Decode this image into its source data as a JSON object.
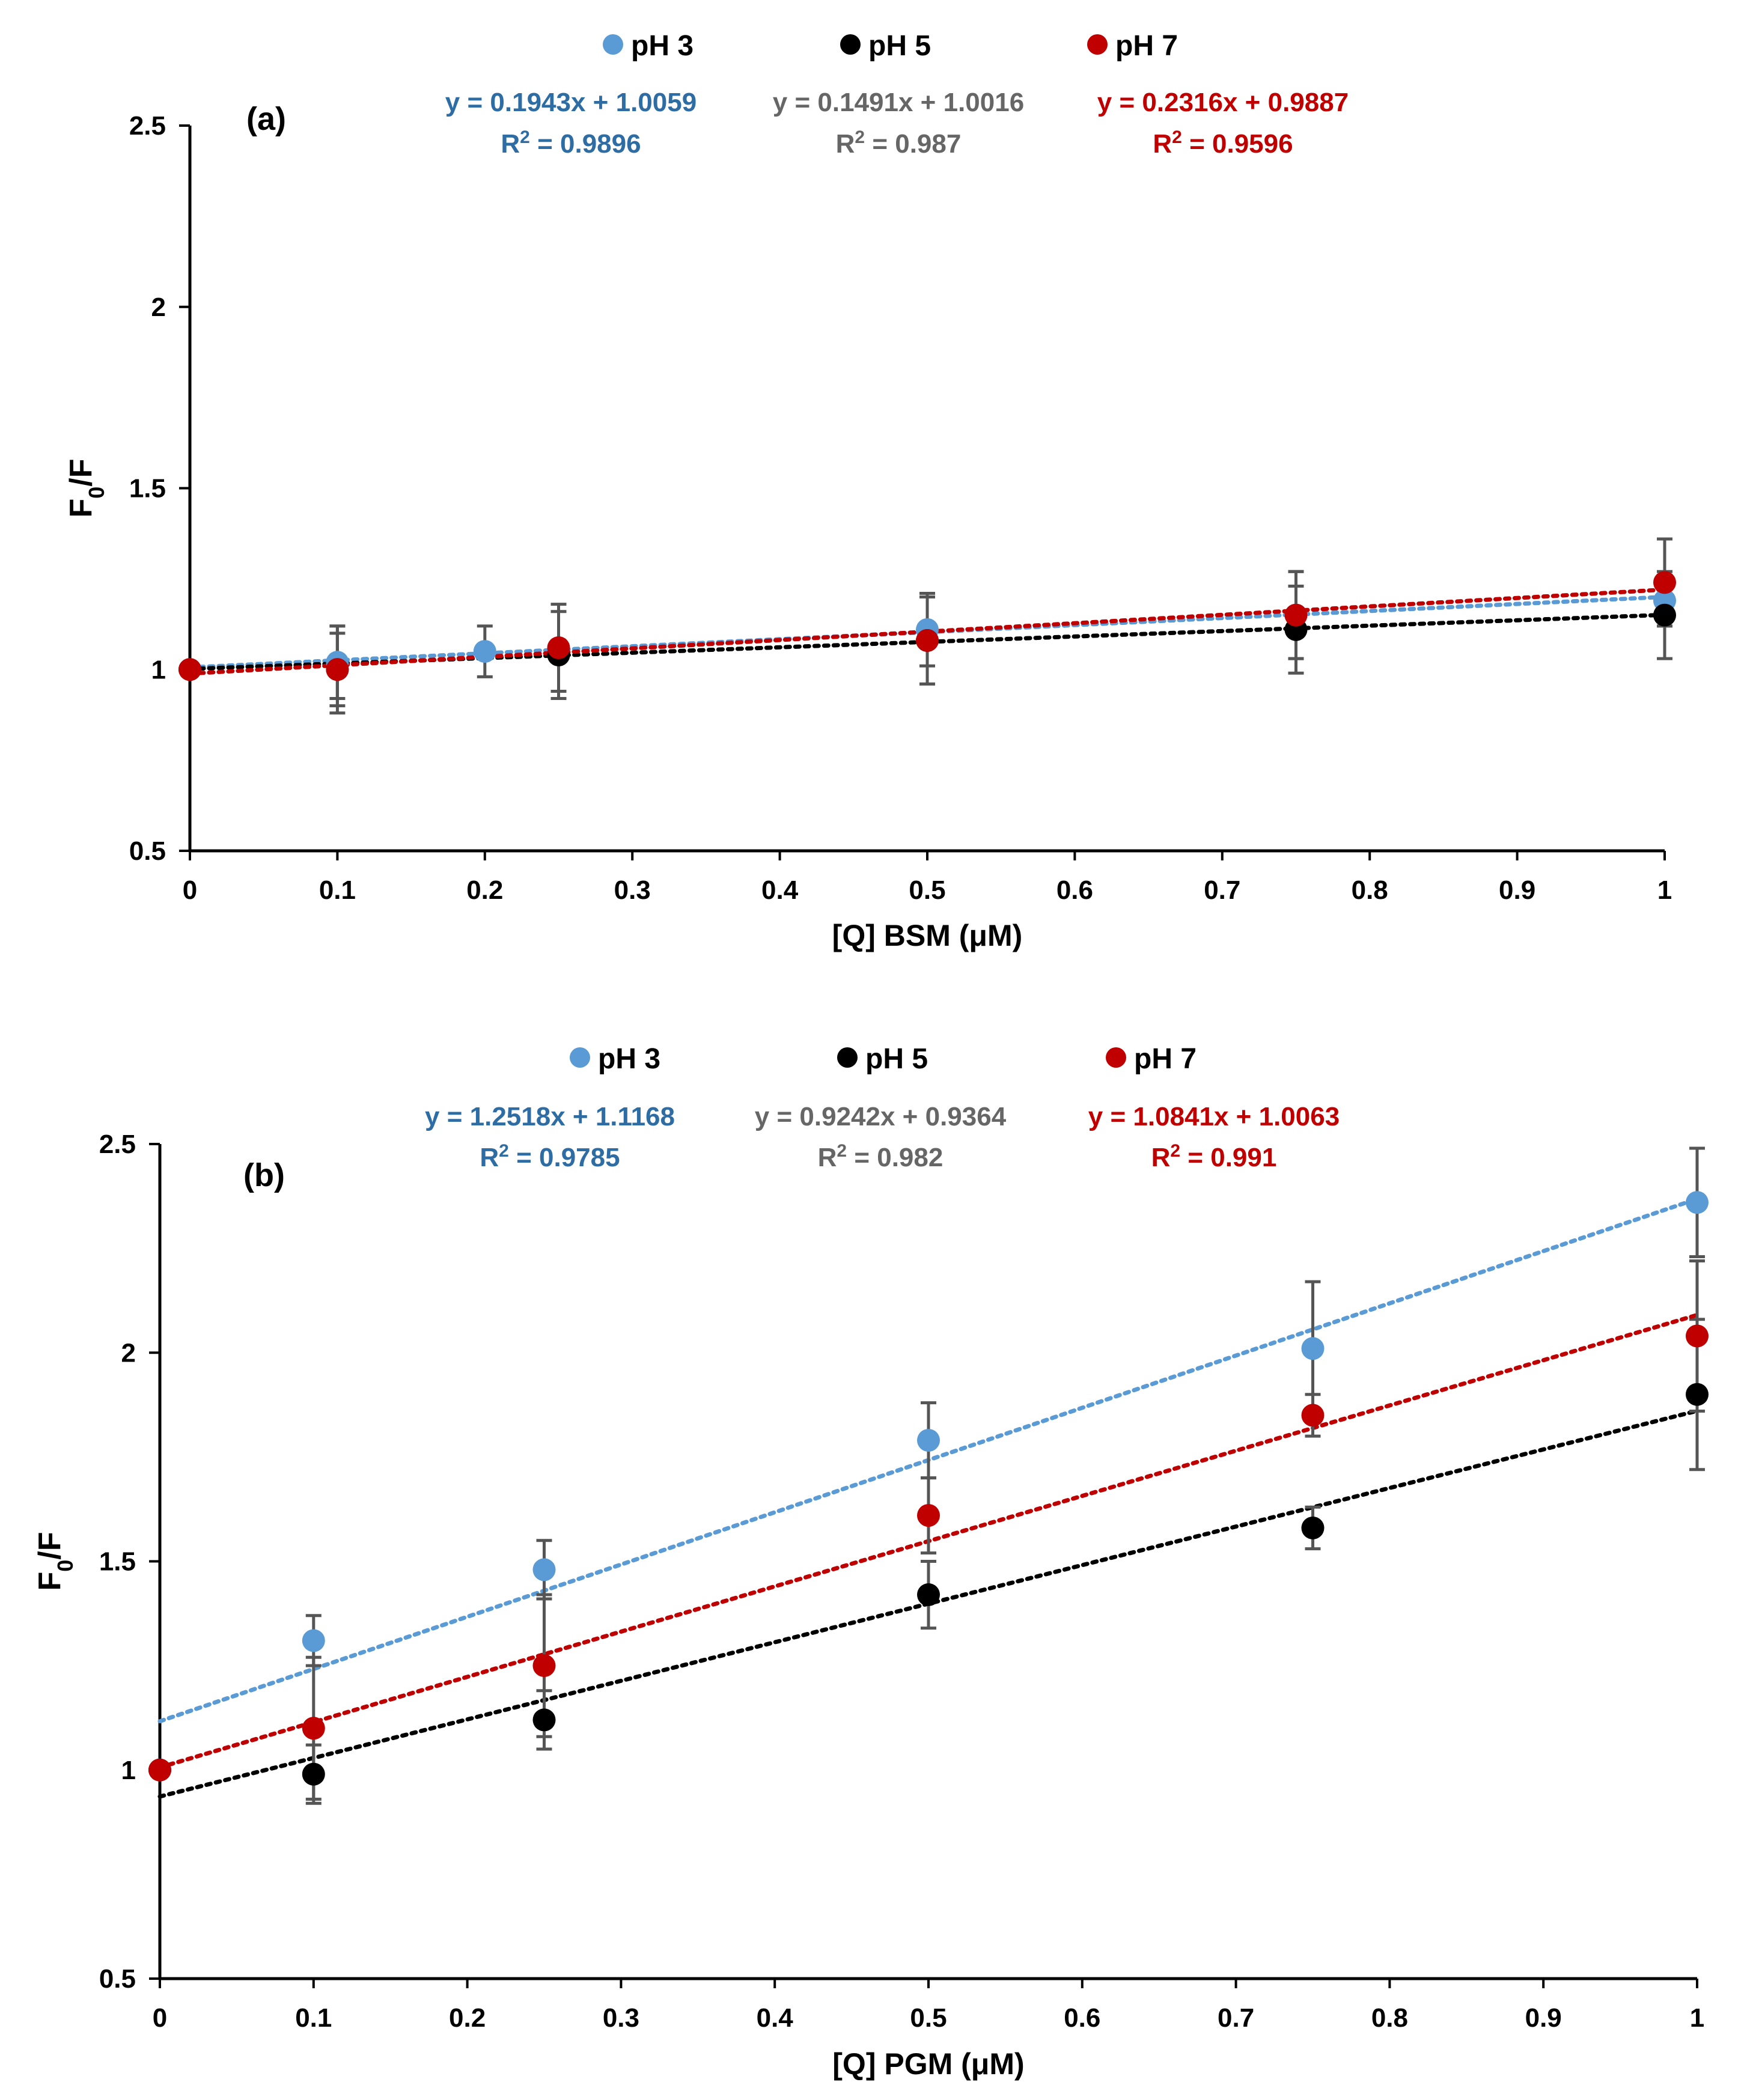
{
  "colors": {
    "ph3": "#5b9bd5",
    "ph3_text": "#2e6da4",
    "ph5": "#000000",
    "ph5_text": "#666666",
    "ph7": "#c00000",
    "axis": "#000000",
    "errorbar": "#555555"
  },
  "chart_data": [
    {
      "type": "scatter",
      "panel_label": "(a)",
      "xlabel": "[Q] BSM (μM)",
      "ylabel_main": "F",
      "ylabel_sub": "0",
      "ylabel_tail": "/F",
      "xlim": [
        0,
        1
      ],
      "ylim": [
        0.5,
        2.5
      ],
      "xticks": [
        0,
        0.1,
        0.2,
        0.3,
        0.4,
        0.5,
        0.6,
        0.7,
        0.8,
        0.9,
        1
      ],
      "xtick_labels": [
        "0",
        "0.1",
        "0.2",
        "0.3",
        "0.4",
        "0.5",
        "0.6",
        "0.7",
        "0.8",
        "0.9",
        "1"
      ],
      "yticks": [
        0.5,
        1,
        1.5,
        2,
        2.5
      ],
      "ytick_labels": [
        "0.5",
        "1",
        "1.5",
        "2",
        "2.5"
      ],
      "series": [
        {
          "name": "pH 3",
          "color_key": "ph3",
          "x": [
            0,
            0.1,
            0.2,
            0.5,
            0.75,
            1
          ],
          "y": [
            1.0,
            1.02,
            1.05,
            1.11,
            1.15,
            1.19
          ],
          "err": [
            0,
            0.1,
            0.07,
            0.1,
            0.12,
            0.07
          ],
          "trend_slope": 0.1943,
          "trend_intercept": 1.0059,
          "equation": "y = 0.1943x + 1.0059",
          "r2_label": "R",
          "r2_sup": "2",
          "r2_value": " = 0.9896"
        },
        {
          "name": "pH 5",
          "color_key": "ph5",
          "x": [
            0,
            0.1,
            0.25,
            0.5,
            0.75,
            1
          ],
          "y": [
            1.0,
            1.0,
            1.04,
            1.08,
            1.11,
            1.15
          ],
          "err": [
            0,
            0.12,
            0.12,
            0.12,
            0.12,
            0.12
          ],
          "trend_slope": 0.1491,
          "trend_intercept": 1.0016,
          "equation": "y = 0.1491x + 1.0016",
          "r2_label": "R",
          "r2_sup": "2",
          "r2_value": " = 0.987"
        },
        {
          "name": "pH 7",
          "color_key": "ph7",
          "x": [
            0,
            0.1,
            0.25,
            0.5,
            0.75,
            1
          ],
          "y": [
            1.0,
            1.0,
            1.06,
            1.08,
            1.15,
            1.24
          ],
          "err": [
            0,
            0.1,
            0.12,
            0.12,
            0.12,
            0.12
          ],
          "trend_slope": 0.2316,
          "trend_intercept": 0.9887,
          "equation": "y = 0.2316x + 0.9887",
          "r2_label": "R",
          "r2_sup": "2",
          "r2_value": " = 0.9596"
        }
      ]
    },
    {
      "type": "scatter",
      "panel_label": "(b)",
      "xlabel": "[Q] PGM (μM)",
      "ylabel_main": "F",
      "ylabel_sub": "0",
      "ylabel_tail": "/F",
      "xlim": [
        0,
        1
      ],
      "ylim": [
        0.5,
        2.5
      ],
      "xticks": [
        0,
        0.1,
        0.2,
        0.3,
        0.4,
        0.5,
        0.6,
        0.7,
        0.8,
        0.9,
        1
      ],
      "xtick_labels": [
        "0",
        "0.1",
        "0.2",
        "0.3",
        "0.4",
        "0.5",
        "0.6",
        "0.7",
        "0.8",
        "0.9",
        "1"
      ],
      "yticks": [
        0.5,
        1,
        1.5,
        2,
        2.5
      ],
      "ytick_labels": [
        "0.5",
        "1",
        "1.5",
        "2",
        "2.5"
      ],
      "series": [
        {
          "name": "pH 3",
          "color_key": "ph3",
          "x": [
            0,
            0.1,
            0.25,
            0.5,
            0.75,
            1
          ],
          "y": [
            1.0,
            1.31,
            1.48,
            1.79,
            2.01,
            2.36
          ],
          "err": [
            0,
            0.06,
            0.07,
            0.09,
            0.16,
            0.13
          ],
          "trend_slope": 1.2518,
          "trend_intercept": 1.1168,
          "equation": "y = 1.2518x + 1.1168",
          "r2_label": "R",
          "r2_sup": "2",
          "r2_value": " = 0.9785"
        },
        {
          "name": "pH 5",
          "color_key": "ph5",
          "x": [
            0,
            0.1,
            0.25,
            0.5,
            0.75,
            1
          ],
          "y": [
            1.0,
            0.99,
            1.12,
            1.42,
            1.58,
            1.9
          ],
          "err": [
            0,
            0.07,
            0.07,
            0.08,
            0.05,
            0.18
          ],
          "trend_slope": 0.9242,
          "trend_intercept": 0.9364,
          "equation": "y = 0.9242x + 0.9364",
          "r2_label": "R",
          "r2_sup": "2",
          "r2_value": " = 0.982"
        },
        {
          "name": "pH 7",
          "color_key": "ph7",
          "x": [
            0,
            0.1,
            0.25,
            0.5,
            0.75,
            1
          ],
          "y": [
            1.0,
            1.1,
            1.25,
            1.61,
            1.85,
            2.04
          ],
          "err": [
            0,
            0.17,
            0.17,
            0.09,
            0.05,
            0.18
          ],
          "trend_slope": 1.0841,
          "trend_intercept": 1.0063,
          "equation": "y = 1.0841x + 1.0063",
          "r2_label": "R",
          "r2_sup": "2",
          "r2_value": " = 0.991"
        }
      ]
    }
  ]
}
